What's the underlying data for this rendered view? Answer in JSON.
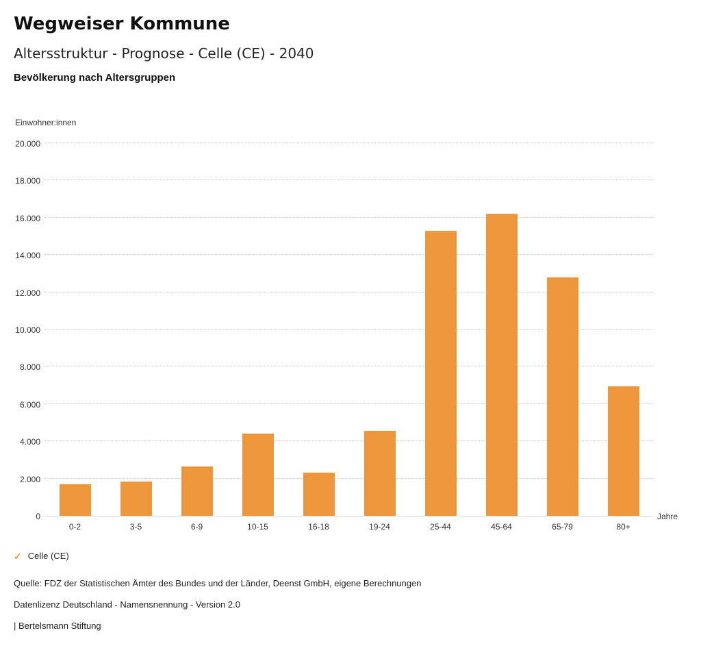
{
  "header": {
    "title": "Wegweiser Kommune",
    "subtitle": "Altersstruktur - Prognose - Celle (CE) - 2040",
    "chart_heading": "Bevölkerung nach Altersgruppen"
  },
  "legend": {
    "check_icon": "✓",
    "label": "Celle (CE)"
  },
  "footer": {
    "source": "Quelle: FDZ der Statistischen Ämter des Bundes und der Länder, Deenst GmbH, eigene Berechnungen",
    "license": "Datenlizenz Deutschland - Namensnennung - Version 2.0",
    "attribution": "| Bertelsmann Stiftung"
  },
  "colors": {
    "bar": "#ED963B",
    "gridline": "#c9c9c9"
  },
  "chart_data": {
    "type": "bar",
    "title": "Bevölkerung nach Altersgruppen",
    "xlabel": "Jahre",
    "ylabel": "Einwohner:innen",
    "categories": [
      "0-2",
      "3-5",
      "6-9",
      "10-15",
      "16-18",
      "19-24",
      "25-44",
      "45-64",
      "65-79",
      "80+"
    ],
    "series": [
      {
        "name": "Celle (CE)",
        "values": [
          1700,
          1850,
          2650,
          4400,
          2300,
          4550,
          15300,
          16200,
          12800,
          6950
        ]
      }
    ],
    "ylim": [
      0,
      20000
    ],
    "yticks": [
      0,
      2000,
      4000,
      6000,
      8000,
      10000,
      12000,
      14000,
      16000,
      18000,
      20000
    ],
    "ytick_labels": [
      "0",
      "2.000",
      "4.000",
      "6.000",
      "8.000",
      "10.000",
      "12.000",
      "14.000",
      "16.000",
      "18.000",
      "20.000"
    ],
    "grid": true,
    "legend_position": "bottom-left"
  }
}
